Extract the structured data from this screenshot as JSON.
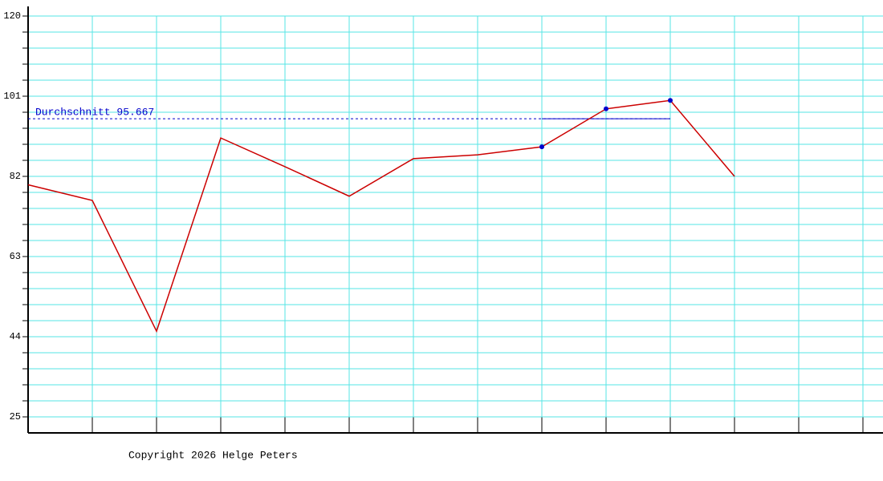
{
  "chart_data": {
    "type": "line",
    "x": [
      0,
      1,
      2,
      3,
      4,
      5,
      6,
      7,
      8,
      9,
      10,
      11
    ],
    "series": [
      {
        "color": "#cc0000",
        "values": [
          80,
          76.3,
          45.3,
          91.1,
          84.3,
          77.3,
          86.2,
          87.1,
          89,
          98,
          100,
          82
        ]
      }
    ],
    "xlim": [
      0,
      13
    ],
    "xticks": [
      0,
      1,
      2,
      3,
      4,
      5,
      6,
      7,
      8,
      9,
      10,
      11,
      12,
      13
    ],
    "ylim": [
      21.2,
      122.28
    ],
    "yticks": [
      25,
      44,
      63,
      82,
      101,
      120
    ],
    "minor_divisions": 5,
    "grid": true,
    "grid_color": "#55e6e6",
    "highlight": [
      8,
      9,
      10
    ],
    "highlight_color": "#0000cc",
    "average": {
      "value": 95.667,
      "label": "Durchschnitt 95.667",
      "color": "#0000cc"
    },
    "footer": "Copyright 2026 Helge Peters"
  }
}
